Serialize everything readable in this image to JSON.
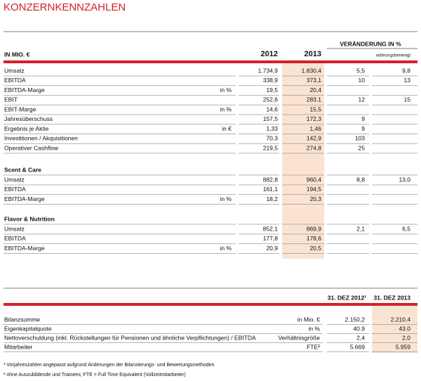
{
  "title": "KONZERNKENNZAHLEN",
  "header": {
    "unit": "IN MIO. €",
    "year_2012": "2012",
    "year_2013": "2013",
    "change": "VERÄNDERUNG IN %",
    "change_fx": "währungsbereinigt"
  },
  "group": {
    "rows": [
      [
        "Umsatz",
        null,
        "1.734,9",
        "1.830,4",
        "5,5",
        "9,8"
      ],
      [
        "EBITDA",
        null,
        "338,9",
        "373,1",
        "10",
        "13"
      ],
      [
        "EBITDA-Marge",
        "in %",
        "19,5",
        "20,4",
        null,
        null
      ],
      [
        "EBIT",
        null,
        "252,6",
        "283,1",
        "12",
        "15"
      ],
      [
        "EBIT-Marge",
        "in %",
        "14,6",
        "15,5",
        null,
        null
      ],
      [
        "Jahresüberschuss",
        null,
        "157,5",
        "172,3",
        "9",
        null
      ],
      [
        "Ergebnis je Aktie",
        "in €",
        "1,33",
        "1,46",
        "9",
        null
      ],
      [
        "Investitionen / Akquisitionen",
        null,
        "70,3",
        "142,9",
        "103",
        null
      ],
      [
        "Operativer Cashflow",
        null,
        "219,5",
        "274,8",
        "25",
        null
      ]
    ]
  },
  "segments": [
    {
      "title": "Scent & Care",
      "rows": [
        [
          "Umsatz",
          null,
          "882,8",
          "960,4",
          "8,8",
          "13,0"
        ],
        [
          "EBITDA",
          null,
          "161,1",
          "194,5",
          null,
          null
        ],
        [
          "EBITDA-Marge",
          "in %",
          "18,2",
          "20,3",
          null,
          null
        ]
      ]
    },
    {
      "title": "Flavor & Nutrition",
      "rows": [
        [
          "Umsatz",
          null,
          "852,1",
          "869,9",
          "2,1",
          "6,5"
        ],
        [
          "EBITDA",
          null,
          "177,8",
          "178,6",
          null,
          null
        ],
        [
          "EBITDA-Marge",
          "in %",
          "20,9",
          "20,5",
          null,
          null
        ]
      ]
    }
  ],
  "balance": {
    "header": [
      "31. DEZ 2012¹",
      "31. DEZ 2013"
    ],
    "rows": [
      [
        "Bilanzsumme",
        "in Mio. €",
        "2.150,2",
        "2.210,4"
      ],
      [
        "Eigenkapitalquote",
        "in %",
        "40.9",
        "43.0"
      ],
      [
        "Nettoverschuldung (inkl. Rückstellungen für Pensionen und ähnliche Verpflichtungen) / EBITDA",
        "Verhältnisgröße",
        "2,4",
        "2,0"
      ],
      [
        "Mitarbeiter",
        "FTE²",
        "5.669",
        "5.959"
      ]
    ]
  },
  "footnotes": [
    "¹ Vorjahreszahlen angepasst aufgrund Änderungen der Bilanzierungs- und Bewertungsmethoden",
    "² ohne Auszubildende und Trainees; FTE = Full Time Equivalent (Vollzeitmitarbeiter)"
  ]
}
